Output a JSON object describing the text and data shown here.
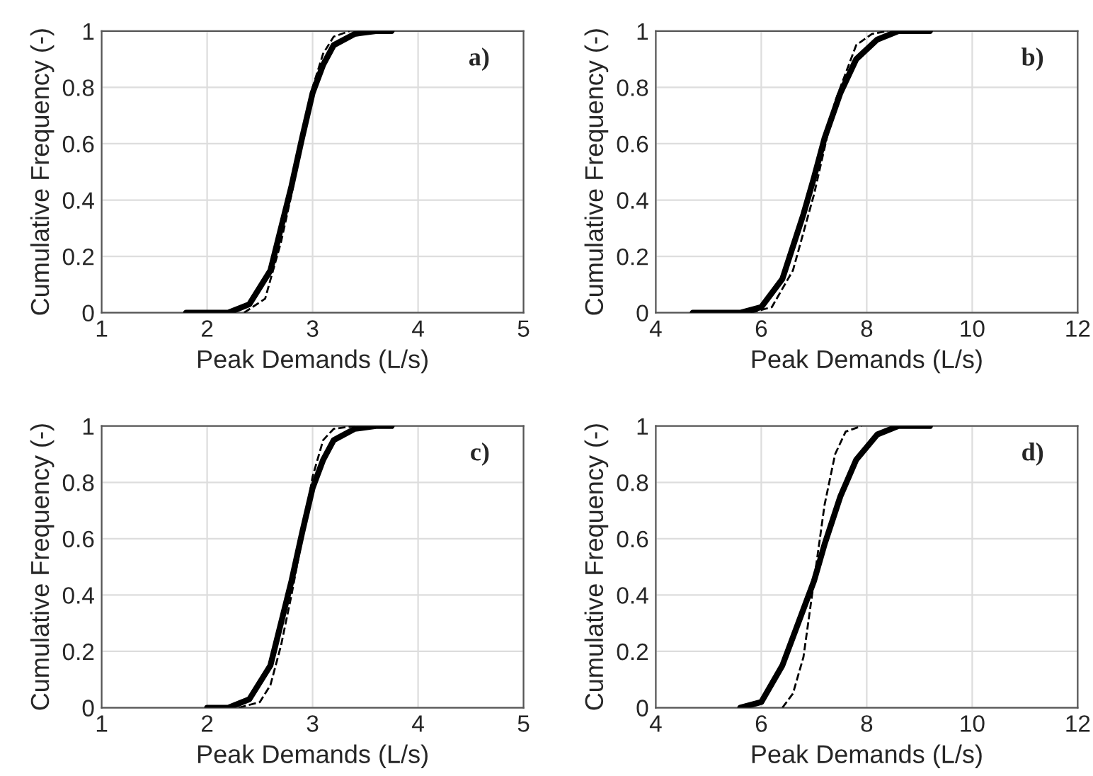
{
  "chart_data": [
    {
      "type": "line",
      "xlabel": "Peak Demands (L/s)",
      "ylabel": "Cumulative Frequency (-)",
      "annotations": [
        "a)"
      ],
      "xlim": [
        1,
        5
      ],
      "ylim": [
        0,
        1
      ],
      "xticks": [
        1,
        2,
        3,
        4,
        5
      ],
      "yticks": [
        0,
        0.2,
        0.4,
        0.6,
        0.8,
        1
      ],
      "grid": true,
      "legend": false,
      "series": [
        {
          "color": "#000000",
          "line_style": "solid",
          "x": [
            1.8,
            2.2,
            2.4,
            2.6,
            2.7,
            2.8,
            2.9,
            3.0,
            3.1,
            3.2,
            3.4,
            3.6,
            3.75
          ],
          "values": [
            0,
            0,
            0.03,
            0.15,
            0.3,
            0.45,
            0.62,
            0.78,
            0.88,
            0.95,
            0.99,
            1,
            1
          ]
        },
        {
          "color": "#000000",
          "line_style": "dashed",
          "x": [
            2.35,
            2.55,
            2.7,
            2.8,
            2.9,
            3.0,
            3.1,
            3.2,
            3.35
          ],
          "values": [
            0,
            0.05,
            0.25,
            0.42,
            0.62,
            0.8,
            0.92,
            0.98,
            1
          ]
        }
      ]
    },
    {
      "type": "line",
      "xlabel": "Peak Demands (L/s)",
      "ylabel": "Cumulative Frequency (-)",
      "annotations": [
        "b)"
      ],
      "xlim": [
        4,
        12
      ],
      "ylim": [
        0,
        1
      ],
      "xticks": [
        4,
        6,
        8,
        10,
        12
      ],
      "yticks": [
        0,
        0.2,
        0.4,
        0.6,
        0.8,
        1
      ],
      "grid": true,
      "legend": false,
      "series": [
        {
          "color": "#000000",
          "line_style": "solid",
          "x": [
            4.7,
            5.6,
            6.0,
            6.4,
            6.8,
            7.0,
            7.2,
            7.5,
            7.8,
            8.2,
            8.6,
            9.2
          ],
          "values": [
            0,
            0,
            0.02,
            0.12,
            0.35,
            0.48,
            0.62,
            0.78,
            0.9,
            0.97,
            1,
            1
          ]
        },
        {
          "color": "#000000",
          "line_style": "dashed",
          "x": [
            5.8,
            6.2,
            6.6,
            7.0,
            7.4,
            7.8,
            8.1,
            8.4
          ],
          "values": [
            0,
            0.02,
            0.15,
            0.42,
            0.75,
            0.95,
            0.99,
            1
          ]
        }
      ]
    },
    {
      "type": "line",
      "xlabel": "Peak Demands (L/s)",
      "ylabel": "Cumulative Frequency (-)",
      "annotations": [
        "c)"
      ],
      "xlim": [
        1,
        5
      ],
      "ylim": [
        0,
        1
      ],
      "xticks": [
        1,
        2,
        3,
        4,
        5
      ],
      "yticks": [
        0,
        0.2,
        0.4,
        0.6,
        0.8,
        1
      ],
      "grid": true,
      "legend": false,
      "series": [
        {
          "color": "#000000",
          "line_style": "solid",
          "x": [
            2.0,
            2.2,
            2.4,
            2.6,
            2.7,
            2.8,
            2.9,
            3.0,
            3.1,
            3.2,
            3.4,
            3.6,
            3.75
          ],
          "values": [
            0,
            0,
            0.03,
            0.15,
            0.3,
            0.45,
            0.62,
            0.78,
            0.88,
            0.95,
            0.99,
            1,
            1
          ]
        },
        {
          "color": "#000000",
          "line_style": "dashed",
          "x": [
            2.3,
            2.5,
            2.6,
            2.7,
            2.8,
            2.9,
            3.0,
            3.1,
            3.2,
            3.4
          ],
          "values": [
            0,
            0.02,
            0.08,
            0.22,
            0.4,
            0.6,
            0.82,
            0.95,
            0.99,
            1
          ]
        }
      ]
    },
    {
      "type": "line",
      "xlabel": "Peak Demands (L/s)",
      "ylabel": "Cumulative Frequency (-)",
      "annotations": [
        "d)"
      ],
      "xlim": [
        4,
        12
      ],
      "ylim": [
        0,
        1
      ],
      "xticks": [
        4,
        6,
        8,
        10,
        12
      ],
      "yticks": [
        0,
        0.2,
        0.4,
        0.6,
        0.8,
        1
      ],
      "grid": true,
      "legend": false,
      "series": [
        {
          "color": "#000000",
          "line_style": "solid",
          "x": [
            5.6,
            6.0,
            6.4,
            6.8,
            7.0,
            7.2,
            7.5,
            7.8,
            8.2,
            8.6,
            9.2
          ],
          "values": [
            0,
            0.02,
            0.15,
            0.35,
            0.45,
            0.58,
            0.75,
            0.88,
            0.97,
            1,
            1
          ]
        },
        {
          "color": "#000000",
          "line_style": "dashed",
          "x": [
            6.4,
            6.6,
            6.8,
            7.0,
            7.2,
            7.4,
            7.6,
            7.9
          ],
          "values": [
            0,
            0.05,
            0.18,
            0.45,
            0.72,
            0.9,
            0.98,
            1
          ]
        }
      ]
    }
  ]
}
